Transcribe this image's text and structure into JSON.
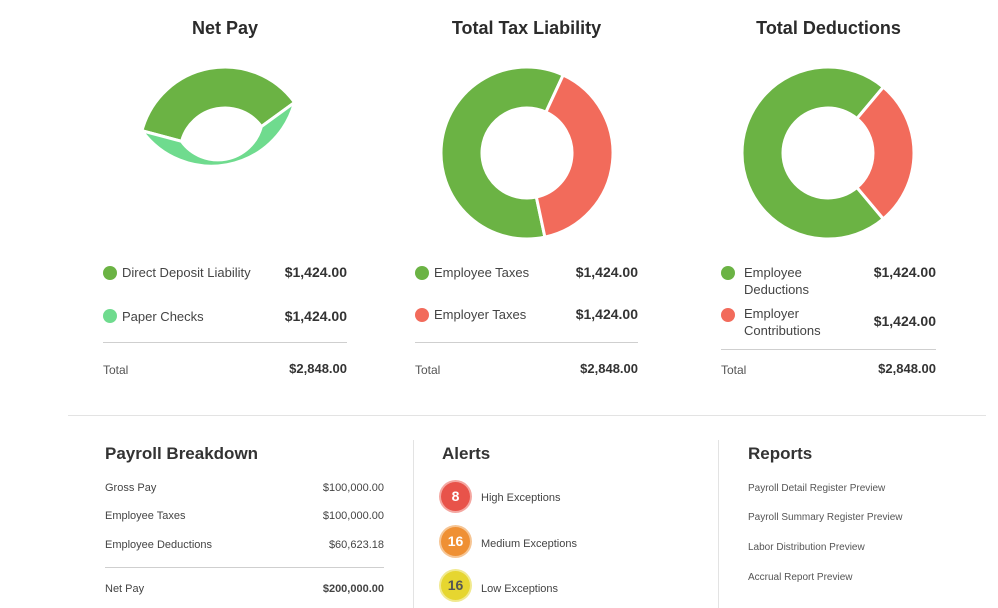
{
  "net_pay": {
    "title": "Net Pay",
    "items": [
      {
        "label": "Direct Deposit Liability",
        "amount": "$1,424.00",
        "color": "#6bb344"
      },
      {
        "label": "Paper Checks",
        "amount": "$1,424.00",
        "color": "#6fdb8e"
      }
    ],
    "total_label": "Total",
    "total_amount": "$2,848.00"
  },
  "tax": {
    "title": "Total Tax Liability",
    "items": [
      {
        "label": "Employee Taxes",
        "amount": "$1,424.00",
        "color": "#6bb344"
      },
      {
        "label": "Employer Taxes",
        "amount": "$1,424.00",
        "color": "#f26b5b"
      }
    ],
    "total_label": "Total",
    "total_amount": "$2,848.00"
  },
  "deductions": {
    "title": "Total Deductions",
    "items": [
      {
        "label_line1": "Employee",
        "label_line2": "Deductions",
        "amount": "$1,424.00",
        "color": "#6bb344"
      },
      {
        "label_line1": "Employer",
        "label_line2": "Contributions",
        "amount": "$1,424.00",
        "color": "#f26b5b"
      }
    ],
    "total_label": "Total",
    "total_amount": "$2,848.00"
  },
  "breakdown": {
    "title": "Payroll Breakdown",
    "rows": [
      {
        "label": "Gross Pay",
        "value": "$100,000.00"
      },
      {
        "label": "Employee Taxes",
        "value": "$100,000.00"
      },
      {
        "label": "Employee Deductions",
        "value": "$60,623.18"
      }
    ],
    "net_label": "Net Pay",
    "net_value": "$200,000.00"
  },
  "alerts": {
    "title": "Alerts",
    "items": [
      {
        "count": "8",
        "label": "High Exceptions",
        "color": "#e8534a"
      },
      {
        "count": "16",
        "label": "Medium Exceptions",
        "color": "#ef9034"
      },
      {
        "count": "16",
        "label": "Low Exceptions",
        "color": "#e6d630"
      }
    ]
  },
  "reports": {
    "title": "Reports",
    "links": [
      "Payroll Detail Register Preview",
      "Payroll Summary Register Preview",
      "Labor Distribution Preview",
      "Accrual Report Preview"
    ]
  }
}
